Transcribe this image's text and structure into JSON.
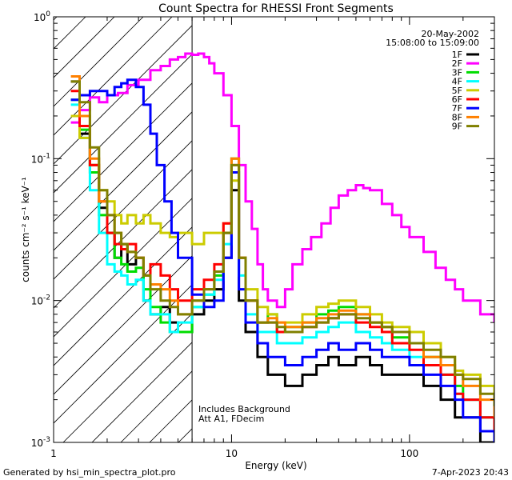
{
  "page": {
    "footer_left": "Generated by hsi_min_spectra_plot.pro",
    "footer_right": "7-Apr-2023 20:43"
  },
  "chart_data": {
    "type": "line",
    "title": "Count Spectra for RHESSI Front Segments",
    "xlabel": "Energy (keV)",
    "ylabel": "counts cm⁻² s⁻¹ keV⁻¹",
    "x_scale": "log",
    "y_scale": "log",
    "xlim": [
      1,
      300
    ],
    "ylim": [
      0.001,
      1
    ],
    "x_ticks": [
      {
        "value": 1,
        "label": "1"
      },
      {
        "value": 10,
        "label": "10"
      },
      {
        "value": 100,
        "label": "100"
      }
    ],
    "y_ticks": [
      {
        "value": 0.001,
        "mant": "10",
        "exp": "-3"
      },
      {
        "value": 0.01,
        "mant": "10",
        "exp": "-2"
      },
      {
        "value": 0.1,
        "mant": "10",
        "exp": "-1"
      },
      {
        "value": 1,
        "mant": "10",
        "exp": "0"
      }
    ],
    "date": "20-May-2002",
    "time_range": "15:08:00 to 15:09:00",
    "annotations": [
      "Includes Background",
      "Att A1, FDecim"
    ],
    "hatched_region_upper_kev": 6,
    "series": [
      {
        "name": "1F",
        "color": "#000000",
        "x": [
          1.25,
          1.4,
          1.6,
          1.8,
          2.0,
          2.2,
          2.4,
          2.6,
          2.9,
          3.2,
          3.5,
          4.0,
          4.5,
          5.0,
          6,
          7,
          8,
          9,
          10,
          11,
          12,
          14,
          16,
          18,
          20,
          25,
          30,
          35,
          40,
          50,
          60,
          70,
          80,
          100,
          120,
          150,
          180,
          200,
          250,
          300
        ],
        "y": [
          0.35,
          0.15,
          0.09,
          0.045,
          0.03,
          0.02,
          0.025,
          0.018,
          0.02,
          0.01,
          0.008,
          0.009,
          0.007,
          0.006,
          0.008,
          0.01,
          0.012,
          0.02,
          0.06,
          0.01,
          0.006,
          0.004,
          0.003,
          0.003,
          0.0025,
          0.003,
          0.0035,
          0.004,
          0.0035,
          0.004,
          0.0035,
          0.003,
          0.003,
          0.003,
          0.0025,
          0.002,
          0.0015,
          0.0015,
          0.001,
          0.001
        ]
      },
      {
        "name": "2F",
        "color": "#ff00ff",
        "x": [
          1.25,
          1.4,
          1.6,
          1.8,
          2.0,
          2.3,
          2.6,
          3.0,
          3.5,
          4.0,
          4.5,
          5.0,
          5.5,
          6,
          6.5,
          7,
          7.5,
          8,
          9,
          10,
          11,
          12,
          13,
          14,
          15,
          16,
          18,
          20,
          22,
          25,
          28,
          32,
          36,
          40,
          45,
          50,
          55,
          60,
          70,
          80,
          90,
          100,
          120,
          140,
          160,
          180,
          200,
          250,
          300
        ],
        "y": [
          0.18,
          0.22,
          0.27,
          0.25,
          0.28,
          0.29,
          0.33,
          0.36,
          0.42,
          0.45,
          0.5,
          0.52,
          0.55,
          0.54,
          0.55,
          0.52,
          0.47,
          0.4,
          0.28,
          0.17,
          0.09,
          0.05,
          0.032,
          0.018,
          0.012,
          0.01,
          0.009,
          0.012,
          0.018,
          0.023,
          0.028,
          0.035,
          0.045,
          0.055,
          0.06,
          0.065,
          0.062,
          0.06,
          0.048,
          0.04,
          0.033,
          0.028,
          0.022,
          0.017,
          0.014,
          0.012,
          0.01,
          0.008,
          0.007
        ]
      },
      {
        "name": "3F",
        "color": "#00dd00",
        "x": [
          1.25,
          1.4,
          1.6,
          1.8,
          2.0,
          2.2,
          2.4,
          2.6,
          2.9,
          3.2,
          3.5,
          4.0,
          4.5,
          5.0,
          6,
          7,
          8,
          9,
          10,
          11,
          12,
          14,
          16,
          18,
          20,
          25,
          30,
          35,
          40,
          50,
          60,
          70,
          80,
          100,
          120,
          150,
          180,
          200,
          250,
          300
        ],
        "y": [
          0.26,
          0.16,
          0.08,
          0.04,
          0.03,
          0.02,
          0.018,
          0.016,
          0.017,
          0.012,
          0.009,
          0.007,
          0.006,
          0.006,
          0.009,
          0.011,
          0.015,
          0.03,
          0.1,
          0.02,
          0.01,
          0.007,
          0.008,
          0.006,
          0.0065,
          0.007,
          0.008,
          0.0085,
          0.009,
          0.008,
          0.007,
          0.0065,
          0.0055,
          0.005,
          0.004,
          0.003,
          0.0025,
          0.002,
          0.0015,
          0.0012
        ]
      },
      {
        "name": "4F",
        "color": "#00ffff",
        "x": [
          1.25,
          1.4,
          1.6,
          1.8,
          2.0,
          2.2,
          2.4,
          2.6,
          2.9,
          3.2,
          3.5,
          4.0,
          4.5,
          5.0,
          6,
          7,
          8,
          9,
          10,
          11,
          12,
          14,
          16,
          18,
          20,
          25,
          30,
          35,
          40,
          50,
          60,
          70,
          80,
          100,
          120,
          150,
          180,
          200,
          250,
          300
        ],
        "y": [
          0.24,
          0.14,
          0.06,
          0.03,
          0.018,
          0.016,
          0.015,
          0.013,
          0.014,
          0.01,
          0.008,
          0.008,
          0.006,
          0.007,
          0.009,
          0.011,
          0.014,
          0.025,
          0.08,
          0.015,
          0.008,
          0.006,
          0.006,
          0.005,
          0.005,
          0.0055,
          0.006,
          0.0065,
          0.007,
          0.006,
          0.0055,
          0.005,
          0.0045,
          0.004,
          0.0035,
          0.003,
          0.0022,
          0.002,
          0.0015,
          0.0012
        ]
      },
      {
        "name": "5F",
        "color": "#cccc00",
        "x": [
          1.25,
          1.4,
          1.6,
          1.8,
          2.0,
          2.2,
          2.4,
          2.6,
          2.9,
          3.2,
          3.5,
          4.0,
          4.5,
          5.0,
          6,
          7,
          8,
          9,
          10,
          11,
          12,
          14,
          16,
          18,
          20,
          25,
          30,
          35,
          40,
          50,
          60,
          70,
          80,
          100,
          120,
          150,
          180,
          200,
          250,
          300
        ],
        "y": [
          0.2,
          0.14,
          0.09,
          0.06,
          0.05,
          0.04,
          0.035,
          0.04,
          0.035,
          0.04,
          0.035,
          0.03,
          0.028,
          0.03,
          0.025,
          0.03,
          0.03,
          0.035,
          0.07,
          0.02,
          0.012,
          0.009,
          0.008,
          0.007,
          0.007,
          0.008,
          0.009,
          0.0095,
          0.01,
          0.009,
          0.008,
          0.007,
          0.0065,
          0.006,
          0.005,
          0.004,
          0.0032,
          0.003,
          0.0025,
          0.002
        ]
      },
      {
        "name": "6F",
        "color": "#ff0000",
        "x": [
          1.25,
          1.4,
          1.6,
          1.8,
          2.0,
          2.2,
          2.4,
          2.6,
          2.9,
          3.2,
          3.5,
          4.0,
          4.5,
          5.0,
          6,
          7,
          8,
          9,
          10,
          11,
          12,
          14,
          16,
          18,
          20,
          25,
          30,
          35,
          40,
          50,
          60,
          70,
          80,
          100,
          120,
          150,
          180,
          200,
          250,
          300
        ],
        "y": [
          0.3,
          0.17,
          0.09,
          0.05,
          0.03,
          0.025,
          0.023,
          0.025,
          0.02,
          0.015,
          0.018,
          0.015,
          0.012,
          0.01,
          0.012,
          0.014,
          0.018,
          0.035,
          0.09,
          0.02,
          0.01,
          0.007,
          0.007,
          0.006,
          0.006,
          0.0065,
          0.007,
          0.0075,
          0.008,
          0.007,
          0.0065,
          0.006,
          0.005,
          0.0045,
          0.0035,
          0.003,
          0.0022,
          0.002,
          0.0015,
          0.0012
        ]
      },
      {
        "name": "7F",
        "color": "#0000ff",
        "x": [
          1.25,
          1.4,
          1.6,
          1.8,
          2.0,
          2.2,
          2.4,
          2.6,
          2.9,
          3.2,
          3.5,
          3.8,
          4.2,
          4.6,
          5.0,
          6,
          7,
          8,
          9,
          10,
          11,
          12,
          14,
          16,
          18,
          20,
          25,
          30,
          35,
          40,
          50,
          60,
          70,
          80,
          100,
          120,
          150,
          180,
          200,
          250,
          300
        ],
        "y": [
          0.26,
          0.28,
          0.3,
          0.3,
          0.28,
          0.32,
          0.34,
          0.36,
          0.32,
          0.24,
          0.15,
          0.09,
          0.05,
          0.03,
          0.02,
          0.011,
          0.009,
          0.01,
          0.02,
          0.08,
          0.012,
          0.007,
          0.005,
          0.004,
          0.004,
          0.0035,
          0.004,
          0.0045,
          0.005,
          0.0045,
          0.005,
          0.0045,
          0.004,
          0.004,
          0.0035,
          0.003,
          0.0025,
          0.002,
          0.0015,
          0.0012,
          0.001
        ]
      },
      {
        "name": "8F",
        "color": "#ff8000",
        "x": [
          1.25,
          1.4,
          1.6,
          1.8,
          2.0,
          2.2,
          2.4,
          2.6,
          2.9,
          3.2,
          3.5,
          4.0,
          4.5,
          5.0,
          6,
          7,
          8,
          9,
          10,
          11,
          12,
          14,
          16,
          18,
          20,
          25,
          30,
          35,
          40,
          50,
          60,
          70,
          80,
          100,
          120,
          150,
          180,
          200,
          250,
          300
        ],
        "y": [
          0.38,
          0.2,
          0.1,
          0.05,
          0.04,
          0.03,
          0.025,
          0.022,
          0.02,
          0.015,
          0.013,
          0.012,
          0.01,
          0.008,
          0.01,
          0.012,
          0.016,
          0.03,
          0.1,
          0.02,
          0.01,
          0.007,
          0.0075,
          0.007,
          0.0065,
          0.007,
          0.0075,
          0.008,
          0.0085,
          0.008,
          0.007,
          0.0065,
          0.006,
          0.005,
          0.004,
          0.0035,
          0.003,
          0.0025,
          0.002,
          0.0015
        ]
      },
      {
        "name": "9F",
        "color": "#808000",
        "x": [
          1.25,
          1.4,
          1.6,
          1.8,
          2.0,
          2.2,
          2.4,
          2.6,
          2.9,
          3.2,
          3.5,
          4.0,
          4.5,
          5.0,
          6,
          7,
          8,
          9,
          10,
          11,
          12,
          14,
          16,
          18,
          20,
          25,
          30,
          35,
          40,
          50,
          60,
          70,
          80,
          100,
          120,
          150,
          180,
          200,
          250,
          300
        ],
        "y": [
          0.35,
          0.25,
          0.12,
          0.06,
          0.04,
          0.03,
          0.025,
          0.022,
          0.02,
          0.015,
          0.012,
          0.01,
          0.009,
          0.008,
          0.01,
          0.012,
          0.016,
          0.03,
          0.09,
          0.02,
          0.01,
          0.007,
          0.007,
          0.0065,
          0.006,
          0.0065,
          0.007,
          0.0075,
          0.008,
          0.0075,
          0.007,
          0.0065,
          0.006,
          0.005,
          0.0045,
          0.004,
          0.003,
          0.0028,
          0.0022,
          0.0018
        ]
      }
    ]
  }
}
